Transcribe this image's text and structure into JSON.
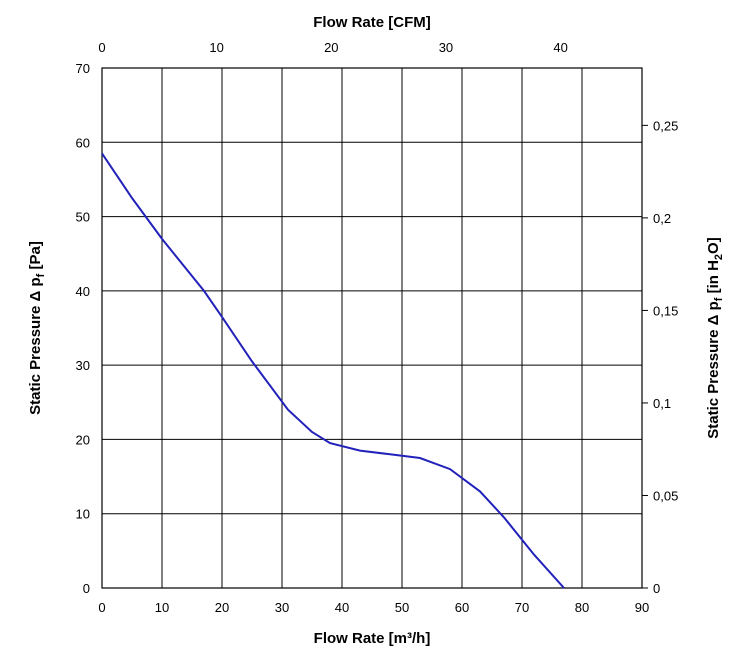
{
  "chart_data": {
    "type": "line",
    "xlabel_bottom": "Flow Rate [m³/h]",
    "xlabel_top": "Flow Rate [CFM]",
    "ylabel_left_prefix": "Static Pressure Δ p",
    "ylabel_left_subscript": "f",
    "ylabel_left_suffix": " [Pa]",
    "ylabel_right_prefix": "Static Pressure Δ p",
    "ylabel_right_subscript": "f",
    "ylabel_right_mid": " [in H",
    "ylabel_right_subscript2": "2",
    "ylabel_right_suffix": "O]",
    "xlim_bottom": [
      0,
      90
    ],
    "xticks_bottom": [
      "0",
      "10",
      "20",
      "30",
      "40",
      "50",
      "60",
      "70",
      "80",
      "90"
    ],
    "xlim_top_cfm": [
      0,
      47.1
    ],
    "xticks_top": [
      "0",
      "10",
      "20",
      "30",
      "40"
    ],
    "ylim_left": [
      0,
      70
    ],
    "yticks_left": [
      "0",
      "10",
      "20",
      "30",
      "40",
      "50",
      "60",
      "70"
    ],
    "ylim_right_inH2O": [
      0,
      0.281
    ],
    "yticks_right": [
      "0",
      "0,05",
      "0,1",
      "0,15",
      "0,2",
      "0,25"
    ],
    "grid": true,
    "series": [
      {
        "x": [
          0,
          5,
          10,
          17,
          20,
          25,
          31,
          35,
          38,
          43,
          48,
          53,
          58,
          63,
          67,
          72,
          77
        ],
        "y": [
          58.5,
          52.5,
          47,
          40,
          36.5,
          30.5,
          24,
          21,
          19.5,
          18.5,
          18,
          17.5,
          16,
          13,
          9.5,
          4.5,
          0
        ],
        "color": "#2222bb"
      }
    ]
  }
}
